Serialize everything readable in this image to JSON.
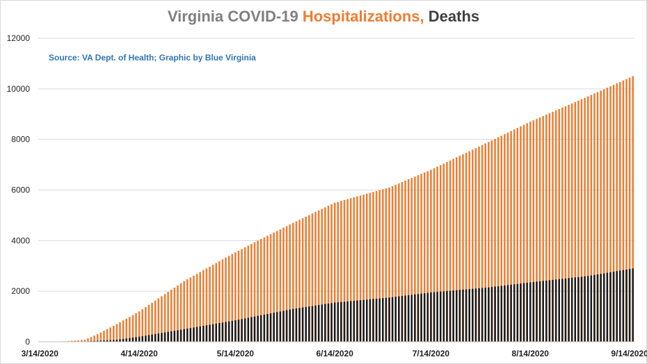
{
  "chart_data": {
    "type": "bar",
    "title_parts": [
      {
        "text": "Virginia COVID-19 ",
        "color": "#7f7f7f"
      },
      {
        "text": "Hospitalizations,",
        "color": "#ed7d31"
      },
      {
        "text": " Deaths",
        "color": "#404040"
      }
    ],
    "annotation": "Source: VA Dept. of Health; Graphic by Blue Virginia",
    "x_start": "3/14/2020",
    "x_end": "9/15/2020",
    "ylim": [
      0,
      12000
    ],
    "y_ticks": [
      "0",
      "2000",
      "4000",
      "6000",
      "8000",
      "10000",
      "12000"
    ],
    "x_tick_labels": [
      "3/14/2020",
      "4/14/2020",
      "5/14/2020",
      "6/14/2020",
      "7/14/2020",
      "8/14/2020",
      "9/14/2020"
    ],
    "grid": true,
    "series": [
      {
        "name": "Hospitalizations",
        "color": "#ed7d31",
        "points": [
          [
            "3/14/2020",
            0
          ],
          [
            "3/22/2020",
            20
          ],
          [
            "3/28/2020",
            80
          ],
          [
            "4/1/2020",
            300
          ],
          [
            "4/7/2020",
            700
          ],
          [
            "4/14/2020",
            1200
          ],
          [
            "4/21/2020",
            1800
          ],
          [
            "4/28/2020",
            2400
          ],
          [
            "5/5/2020",
            2900
          ],
          [
            "5/12/2020",
            3400
          ],
          [
            "5/21/2020",
            4000
          ],
          [
            "6/1/2020",
            4700
          ],
          [
            "6/14/2020",
            5500
          ],
          [
            "7/1/2020",
            6100
          ],
          [
            "7/14/2020",
            6800
          ],
          [
            "8/1/2020",
            7900
          ],
          [
            "8/14/2020",
            8700
          ],
          [
            "9/1/2020",
            9700
          ],
          [
            "9/15/2020",
            10500
          ]
        ]
      },
      {
        "name": "Deaths",
        "color": "#1a1a1a",
        "points": [
          [
            "3/14/2020",
            0
          ],
          [
            "3/28/2020",
            10
          ],
          [
            "4/7/2020",
            80
          ],
          [
            "4/14/2020",
            200
          ],
          [
            "4/28/2020",
            500
          ],
          [
            "5/14/2020",
            850
          ],
          [
            "6/1/2020",
            1300
          ],
          [
            "6/14/2020",
            1550
          ],
          [
            "7/1/2020",
            1750
          ],
          [
            "7/14/2020",
            1950
          ],
          [
            "8/1/2020",
            2150
          ],
          [
            "8/14/2020",
            2350
          ],
          [
            "9/1/2020",
            2600
          ],
          [
            "9/15/2020",
            2900
          ]
        ]
      }
    ]
  }
}
